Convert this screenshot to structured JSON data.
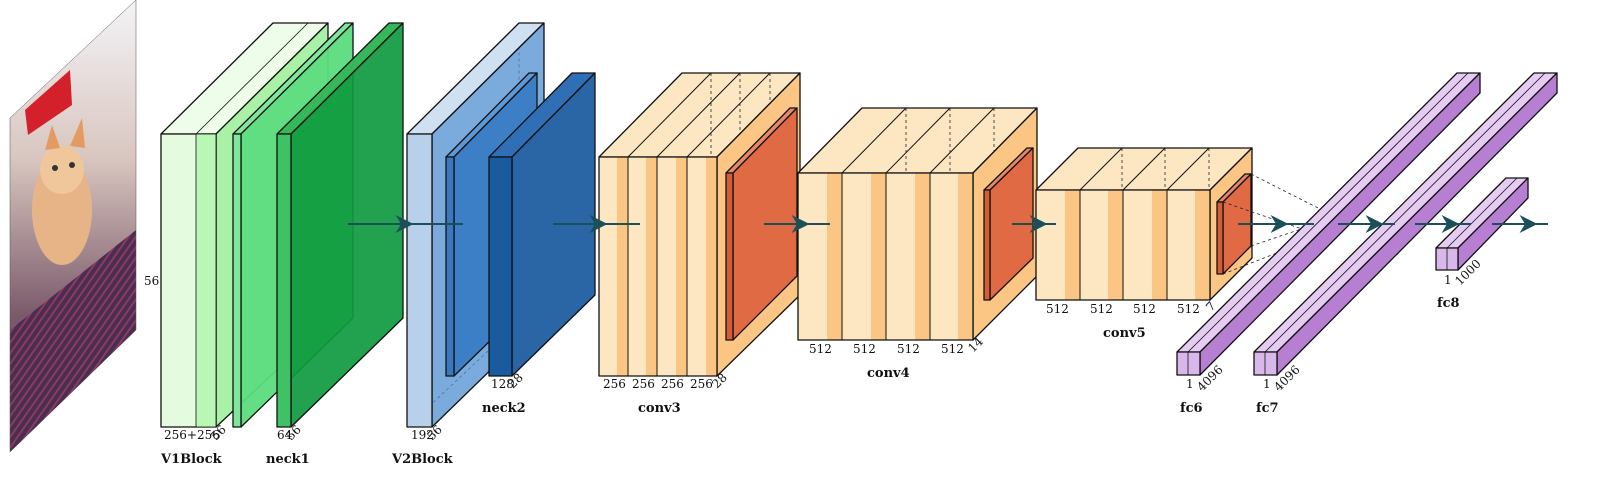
{
  "input": {
    "icon": "kitten-photo"
  },
  "labels": {
    "v1_height": "56",
    "v1_depth": "256+256",
    "v1_width": "56",
    "neck1_depth": "64",
    "neck1_width": "56",
    "v2_depth": "192",
    "v2_width": "56",
    "neck2_depth": "128",
    "neck2_width": "28",
    "conv3_ch": [
      "256",
      "256",
      "256",
      "256"
    ],
    "conv3_width": "28",
    "conv4_ch": [
      "512",
      "512",
      "512",
      "512"
    ],
    "conv4_width": "14",
    "conv5_ch": [
      "512",
      "512",
      "512",
      "512"
    ],
    "conv5_width": "7",
    "fc6_a": "1",
    "fc6_b": "4096",
    "fc7_a": "1",
    "fc7_b": "4096",
    "fc8_a": "1",
    "fc8_b": "1000"
  },
  "names": {
    "v1block": "V1Block",
    "neck1": "neck1",
    "v2block": "V2Block",
    "neck2": "neck2",
    "conv3": "conv3",
    "conv4": "conv4",
    "conv5": "conv5",
    "fc6": "fc6",
    "fc7": "fc7",
    "fc8": "fc8"
  },
  "colors": {
    "v1_light": "#e4fbe0",
    "v1_mid": "#b8f7b4",
    "neck1": "#5cdc7e",
    "neck1_dark": "#0f9a3f",
    "v2_light": "#b9d0ea",
    "v2_blue": "#3d7fc6",
    "neck2": "#1a5a9e",
    "conv_light": "#fde7c2",
    "conv_mid": "#fbc684",
    "pool": "#e06a44",
    "fc": "#d8b7ea",
    "fc_dark": "#b77fd2",
    "arrow": "#1b4f5a"
  }
}
